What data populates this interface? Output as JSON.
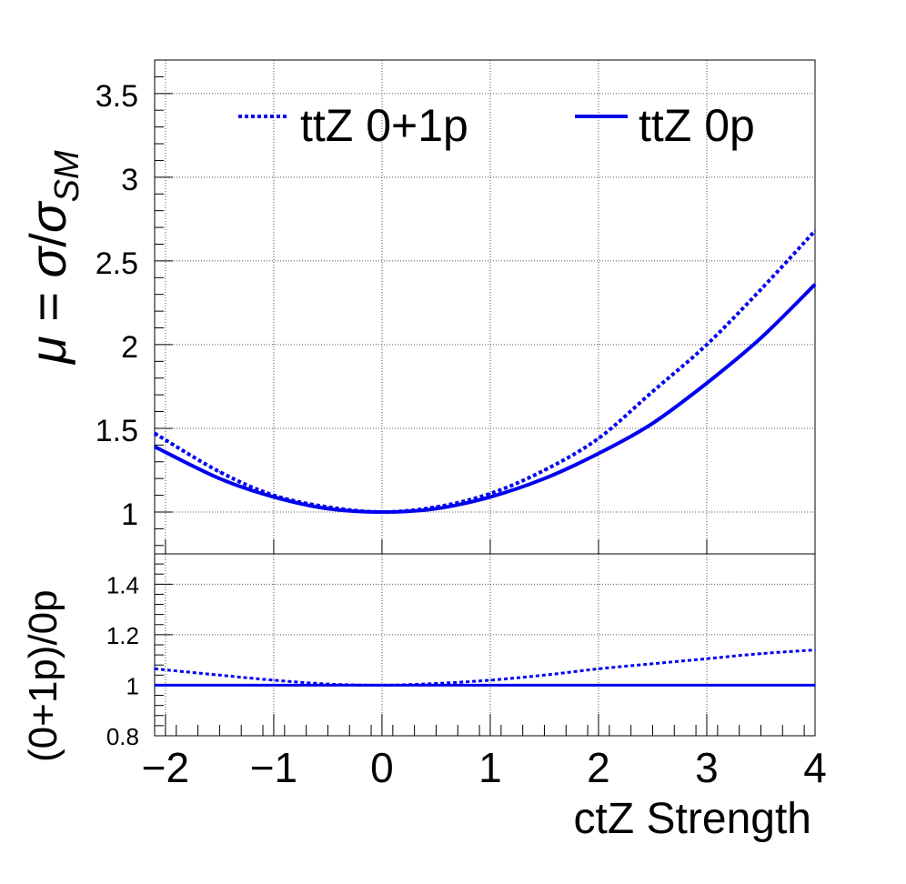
{
  "chart_data": [
    {
      "type": "line",
      "title": "",
      "xlabel": "",
      "ylabel": "μ = σ/σ_SM",
      "ylabel_parts": {
        "mu": "μ",
        "eq": " = ",
        "sigma": "σ",
        "slash": "/",
        "sub": "SM"
      },
      "xlim": [
        -2.1,
        4.0
      ],
      "ylim": [
        0.75,
        3.7
      ],
      "grid": true,
      "legend_position": "top",
      "yticks": [
        1,
        1.5,
        2,
        2.5,
        3,
        3.5
      ],
      "ytick_labels": [
        "1",
        "1.5",
        "2",
        "2.5",
        "3",
        "3.5"
      ],
      "colors": {
        "line": "#0000ee",
        "grid": "#555555",
        "axis": "#000000"
      },
      "series": [
        {
          "name": "ttZ 0+1p",
          "style": "dotted",
          "x": [
            -2.1,
            -1.5,
            -1.0,
            -0.5,
            0.0,
            0.5,
            1.0,
            1.5,
            2.0,
            2.5,
            3.0,
            3.5,
            4.0
          ],
          "y": [
            1.47,
            1.24,
            1.1,
            1.03,
            1.0,
            1.03,
            1.11,
            1.25,
            1.44,
            1.72,
            2.0,
            2.33,
            2.68
          ]
        },
        {
          "name": "ttZ 0p",
          "style": "solid",
          "x": [
            -2.1,
            -1.5,
            -1.0,
            -0.5,
            0.0,
            0.5,
            1.0,
            1.5,
            2.0,
            2.5,
            3.0,
            3.5,
            4.0
          ],
          "y": [
            1.39,
            1.2,
            1.09,
            1.02,
            1.0,
            1.02,
            1.09,
            1.2,
            1.35,
            1.53,
            1.77,
            2.04,
            2.36
          ]
        }
      ]
    },
    {
      "type": "line",
      "title": "",
      "xlabel": "ctZ Strength",
      "ylabel": "(0+1p)/0p",
      "xlim": [
        -2.1,
        4.0
      ],
      "ylim": [
        0.8,
        1.52
      ],
      "grid": true,
      "xticks": [
        -2,
        -1,
        0,
        1,
        2,
        3,
        4
      ],
      "xtick_labels": [
        "−2",
        "−1",
        "0",
        "1",
        "2",
        "3",
        "4"
      ],
      "yticks": [
        0.8,
        1,
        1.2,
        1.4
      ],
      "ytick_labels": [
        "0.8",
        "1",
        "1.2",
        "1.4"
      ],
      "series": [
        {
          "style": "dotted",
          "x": [
            -2.1,
            -1.5,
            -1.0,
            -0.5,
            0.0,
            0.5,
            1.0,
            1.5,
            2.0,
            2.5,
            3.0,
            3.5,
            4.0
          ],
          "y": [
            1.065,
            1.04,
            1.02,
            1.005,
            1.0,
            1.007,
            1.02,
            1.04,
            1.065,
            1.085,
            1.105,
            1.125,
            1.14
          ]
        },
        {
          "style": "solid",
          "x": [
            -2.1,
            4.0
          ],
          "y": [
            1.0,
            1.0
          ]
        }
      ]
    }
  ]
}
